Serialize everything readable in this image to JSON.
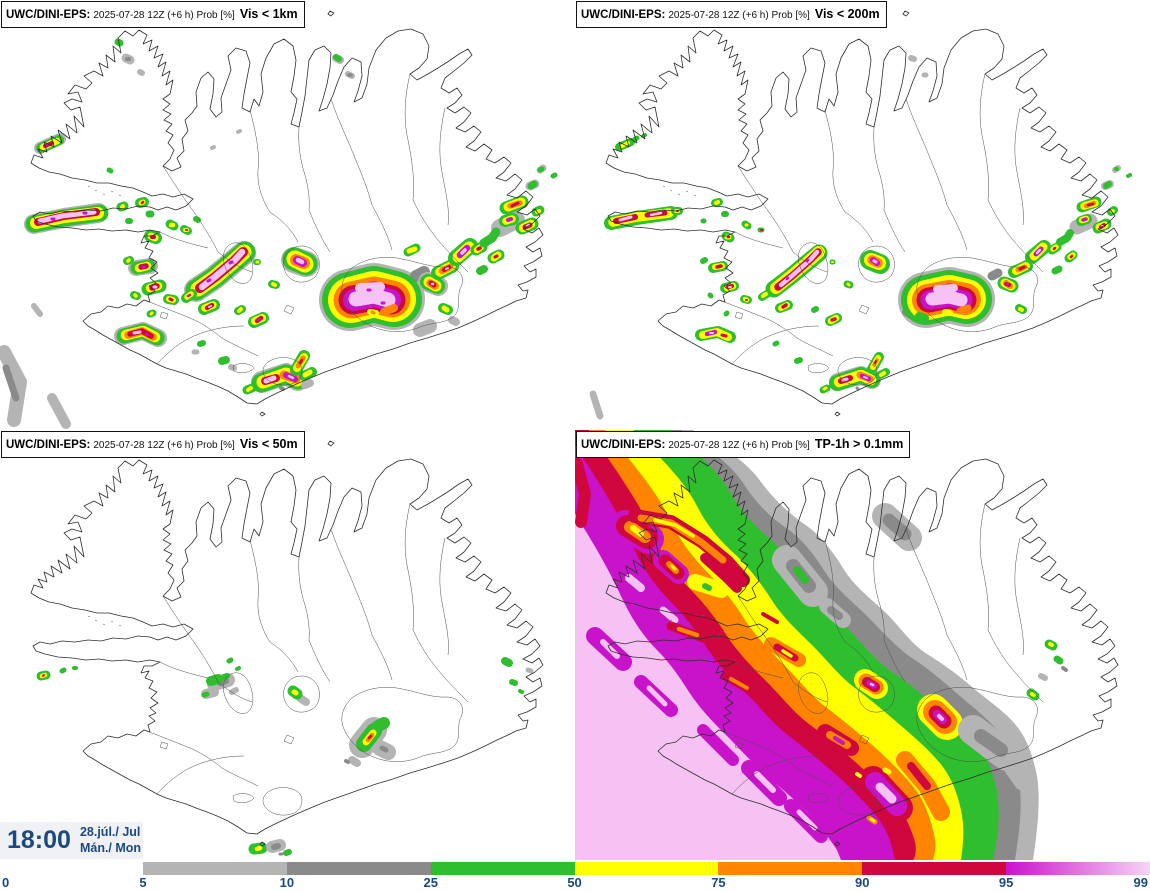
{
  "panels": [
    {
      "model": "UWC/DINI-EPS:",
      "run": "2025-07-28 12Z (+6 h) Prob [%]",
      "variable": "Vis < 1km"
    },
    {
      "model": "UWC/DINI-EPS:",
      "run": "2025-07-28 12Z (+6 h) Prob [%]",
      "variable": "Vis < 200m"
    },
    {
      "model": "UWC/DINI-EPS:",
      "run": "2025-07-28 12Z (+6 h) Prob [%]",
      "variable": "Vis < 50m"
    },
    {
      "model": "UWC/DINI-EPS:",
      "run": "2025-07-28 12Z (+6 h) Prob [%]",
      "variable": "TP-1h > 0.1mm"
    }
  ],
  "time_panel": {
    "time": "18:00",
    "date": "28.júl./ Jul",
    "day": "Mán./ Mon"
  },
  "colorbar": {
    "tick_labels": [
      "0",
      "5",
      "10",
      "25",
      "50",
      "75",
      "90",
      "95",
      "99"
    ],
    "segments": [
      {
        "color": "#b4b4b4"
      },
      {
        "color": "#8a8a8a"
      },
      {
        "color": "#2ebe2e"
      },
      {
        "color": "#ffff00"
      },
      {
        "color": "#ff8400"
      },
      {
        "color": "#d0063f"
      },
      {
        "gradient": true,
        "from": "#c913cb",
        "to": "#f8d4f6"
      }
    ]
  },
  "palette": {
    "lgray": "#b4b4b4",
    "dgray": "#8a8a8a",
    "green": "#2ebe2e",
    "yellow": "#ffff00",
    "orange": "#ff8400",
    "red": "#d0063f",
    "magenta": "#c913cb",
    "pink": "#f6c2f3",
    "navy": "#1a4a80"
  }
}
